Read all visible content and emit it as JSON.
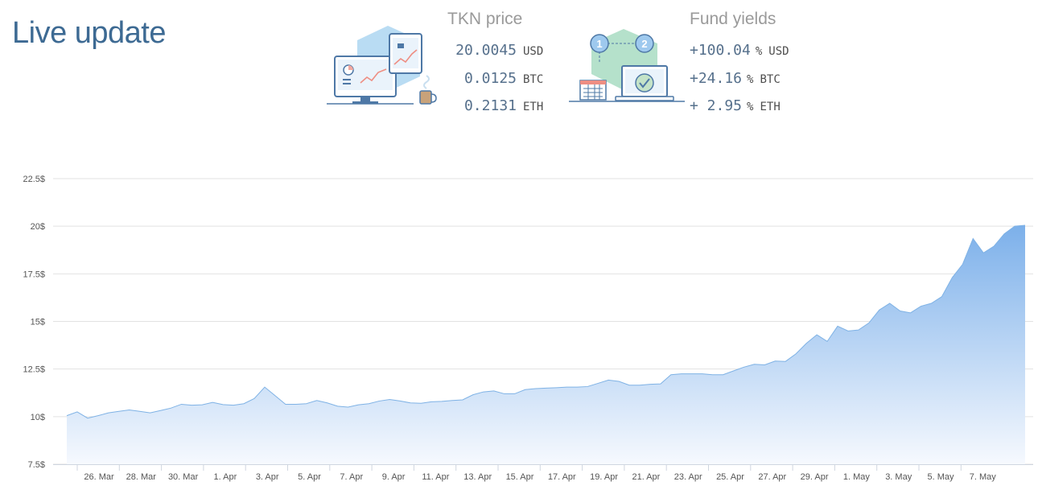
{
  "header": {
    "title": "Live update"
  },
  "price_panel": {
    "title": "TKN price",
    "rows": [
      {
        "value": "20.0045",
        "unit": "USD"
      },
      {
        "value": "0.0125",
        "unit": "BTC"
      },
      {
        "value": "0.2131",
        "unit": "ETH"
      }
    ]
  },
  "yield_panel": {
    "title": "Fund yields",
    "rows": [
      {
        "value": "+100.04",
        "pct": "%",
        "unit": "USD"
      },
      {
        "value": "+24.16",
        "pct": "%",
        "unit": "BTC"
      },
      {
        "value": "+ 2.95",
        "pct": "%",
        "unit": "ETH"
      }
    ]
  },
  "illustrations": {
    "price_icon": "desktop-tablet-chart-icon",
    "yield_icon": "laptop-steps-checkmark-icon",
    "step_labels": [
      "1",
      "2"
    ]
  },
  "colors": {
    "title": "#3d6a93",
    "line": "#7fb2e5",
    "fill_top": "#7cb0ea",
    "fill_bottom": "#f6f9fe",
    "grid": "#e2e2e2"
  },
  "chart_data": {
    "type": "area",
    "title": "",
    "xlabel": "",
    "ylabel": "",
    "ylim": [
      7.5,
      22.5
    ],
    "y_ticks": [
      "7.5$",
      "10$",
      "12.5$",
      "15$",
      "17.5$",
      "20$",
      "22.5$"
    ],
    "y_tick_values": [
      7.5,
      10,
      12.5,
      15,
      17.5,
      20,
      22.5
    ],
    "x_ticks": [
      "26. Mar",
      "28. Mar",
      "30. Mar",
      "1. Apr",
      "3. Apr",
      "5. Apr",
      "7. Apr",
      "9. Apr",
      "11. Apr",
      "13. Apr",
      "15. Apr",
      "17. Apr",
      "19. Apr",
      "21. Apr",
      "23. Apr",
      "25. Apr",
      "27. Apr",
      "29. Apr",
      "1. May",
      "3. May",
      "5. May",
      "7. May"
    ],
    "grid": true,
    "legend": "none",
    "series": [
      {
        "values": [
          10.05,
          10.25,
          9.92,
          10.05,
          10.2,
          10.28,
          10.35,
          10.28,
          10.2,
          10.32,
          10.45,
          10.65,
          10.6,
          10.62,
          10.75,
          10.63,
          10.6,
          10.68,
          10.95,
          11.55,
          11.1,
          10.65,
          10.65,
          10.68,
          10.85,
          10.72,
          10.55,
          10.5,
          10.62,
          10.68,
          10.82,
          10.9,
          10.82,
          10.72,
          10.7,
          10.78,
          10.8,
          10.85,
          10.88,
          11.15,
          11.3,
          11.35,
          11.2,
          11.2,
          11.42,
          11.47,
          11.5,
          11.52,
          11.55,
          11.55,
          11.58,
          11.75,
          11.92,
          11.85,
          11.65,
          11.65,
          11.7,
          11.72,
          12.2,
          12.25,
          12.25,
          12.25,
          12.2,
          12.2,
          12.4,
          12.6,
          12.75,
          12.72,
          12.92,
          12.9,
          13.3,
          13.85,
          14.3,
          13.95,
          14.75,
          14.5,
          14.55,
          14.92,
          15.6,
          15.95,
          15.55,
          15.45,
          15.8,
          15.95,
          16.3,
          17.3,
          18.0,
          19.35,
          18.6,
          18.95,
          19.6,
          20.0,
          20.05
        ]
      }
    ]
  }
}
